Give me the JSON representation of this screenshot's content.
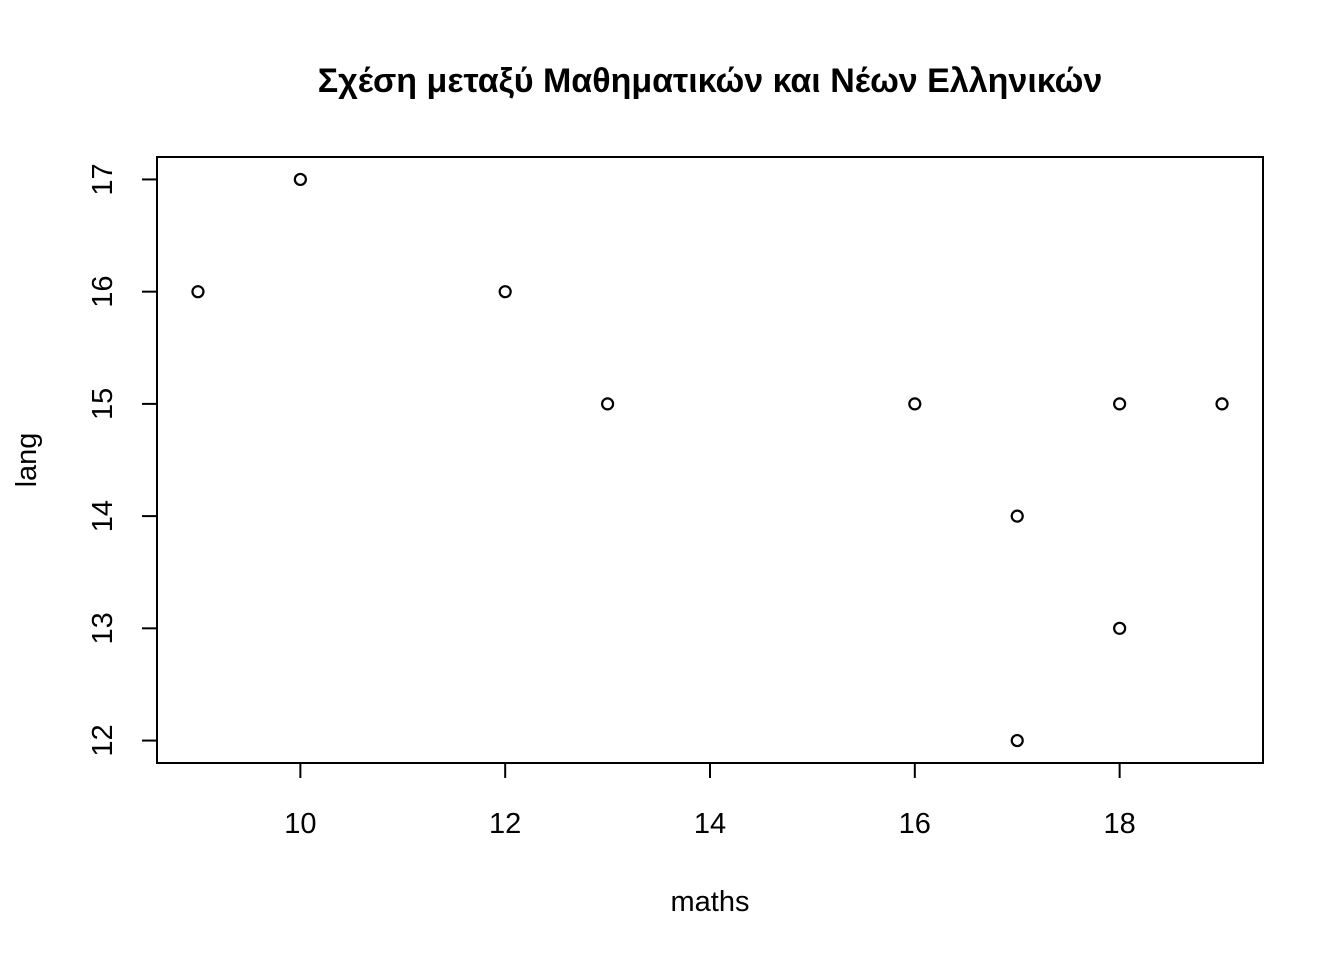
{
  "chart_data": {
    "type": "scatter",
    "title": "Σχέση μεταξύ Μαθηματικών και Νέων Ελληνικών",
    "xlabel": "maths",
    "ylabel": "lang",
    "xlim": [
      8.6,
      19.4
    ],
    "ylim": [
      11.8,
      17.2
    ],
    "xticks": [
      10,
      12,
      14,
      16,
      18
    ],
    "yticks": [
      12,
      13,
      14,
      15,
      16,
      17
    ],
    "grid": false,
    "legend": "none",
    "point_color": "#000000",
    "points": [
      {
        "x": 9,
        "y": 16
      },
      {
        "x": 10,
        "y": 17
      },
      {
        "x": 12,
        "y": 16
      },
      {
        "x": 13,
        "y": 15
      },
      {
        "x": 16,
        "y": 15
      },
      {
        "x": 17,
        "y": 14
      },
      {
        "x": 17,
        "y": 12
      },
      {
        "x": 18,
        "y": 15
      },
      {
        "x": 18,
        "y": 13
      },
      {
        "x": 19,
        "y": 15
      }
    ]
  }
}
